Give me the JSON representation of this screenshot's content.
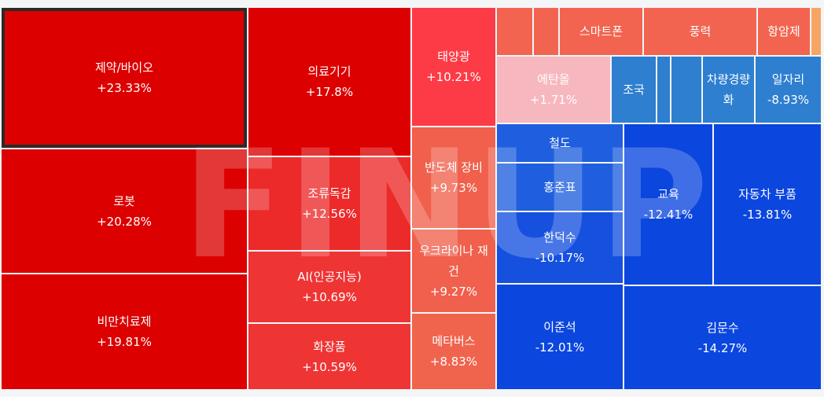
{
  "chart_data": {
    "type": "treemap",
    "watermark": "FINUP",
    "categories": [
      "제약/바이오",
      "로봇",
      "비만치료제",
      "의료기기",
      "조류독감",
      "AI(인공지능)",
      "화장품",
      "태양광",
      "반도체 장비",
      "우크라이나 재건",
      "메타버스",
      null,
      null,
      "스마트폰",
      "풍력",
      "항암제",
      null,
      "에탄올",
      "조국",
      null,
      null,
      "차량경량화",
      "일자리",
      "철도",
      "홍준표",
      "한덕수",
      "이준석",
      "교육",
      "자동차 부품",
      "김문수"
    ],
    "values": [
      23.33,
      20.28,
      19.81,
      17.8,
      12.56,
      10.69,
      10.59,
      10.21,
      9.73,
      9.27,
      8.83,
      null,
      null,
      null,
      null,
      null,
      null,
      1.71,
      null,
      null,
      null,
      null,
      -8.93,
      null,
      null,
      -10.17,
      -12.01,
      -12.41,
      -13.81,
      -14.27
    ],
    "value_labels": [
      "+23.33%",
      "+20.28%",
      "+19.81%",
      "+17.8%",
      "+12.56%",
      "+10.69%",
      "+10.59%",
      "+10.21%",
      "+9.73%",
      "+9.27%",
      "+8.83%",
      null,
      null,
      null,
      null,
      null,
      null,
      "+1.71%",
      null,
      null,
      null,
      null,
      "-8.93%",
      null,
      null,
      "-10.17%",
      "-12.01%",
      "-12.41%",
      "-13.81%",
      "-14.27%"
    ],
    "colors": [
      "#dc0000",
      "#dc0000",
      "#dc0000",
      "#dc0000",
      "#ec2a2a",
      "#ef3434",
      "#ef3434",
      "#fd3b46",
      "#f0604c",
      "#f0604c",
      "#f0644e",
      "#f26450",
      "#f26450",
      "#f26450",
      "#f26450",
      "#f26450",
      "#f7a565",
      "#f7b7bf",
      "#2e7fd0",
      "#2e7fd0",
      "#2e7fd0",
      "#2e7fd0",
      "#2e7fd0",
      "#1f5fdf",
      "#1f5fdf",
      "#1550df",
      "#0b46df",
      "#0b46df",
      "#0b46df",
      "#0b46df"
    ],
    "selected": 0
  }
}
